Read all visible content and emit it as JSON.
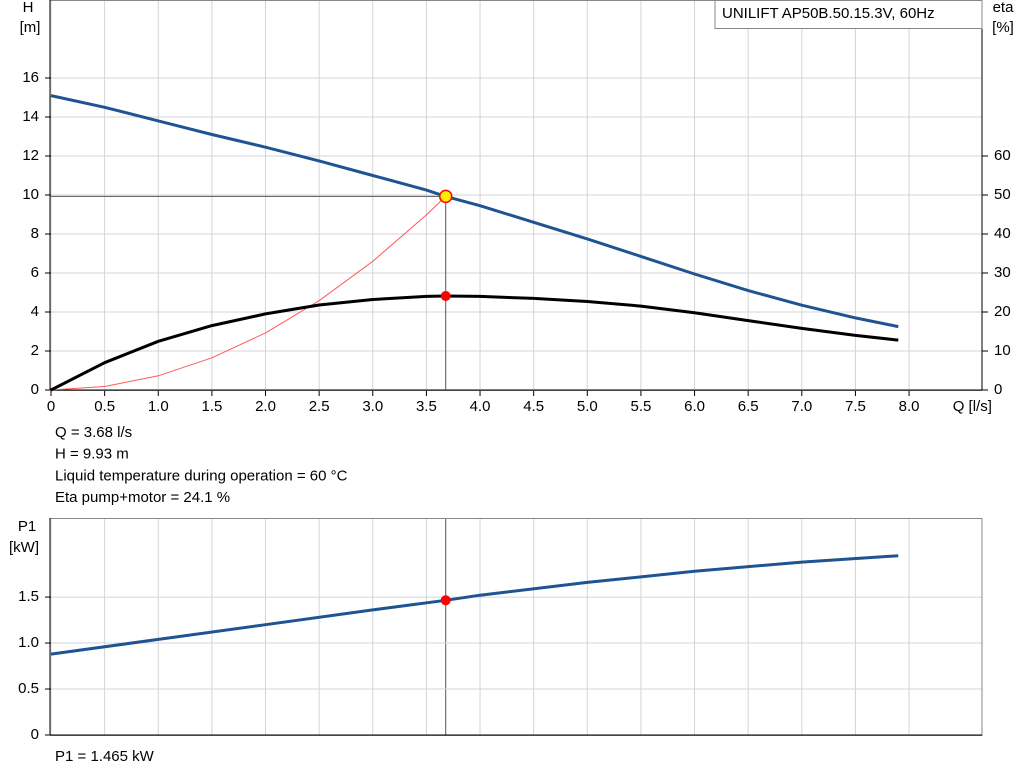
{
  "chart_data": [
    {
      "type": "line",
      "legend_title": "UNILIFT AP50B.50.15.3V, 60Hz",
      "y_label": "H",
      "y_unit": "[m]",
      "y2_label": "eta",
      "y2_unit": "[%]",
      "x_label": "Q [l/s]",
      "xlim": [
        0,
        8.68
      ],
      "xticks": [
        0,
        0.5,
        {
          "value": 1,
          "label": "1.0"
        },
        1.5,
        {
          "value": 2,
          "label": "2.0"
        },
        2.5,
        {
          "value": 3,
          "label": "3.0"
        },
        3.5,
        {
          "value": 4,
          "label": "4.0"
        },
        4.5,
        {
          "value": 5,
          "label": "5.0"
        },
        5.5,
        {
          "value": 6,
          "label": "6.0"
        },
        6.5,
        {
          "value": 7,
          "label": "7.0"
        },
        7.5,
        {
          "value": 8,
          "label": "8.0"
        }
      ],
      "ylim": [
        0,
        20
      ],
      "yticks": [
        0,
        2,
        4,
        6,
        8,
        10,
        12,
        14,
        16
      ],
      "y2lim": [
        0,
        100
      ],
      "y2ticks": [
        0,
        10,
        20,
        30,
        40,
        50,
        60
      ],
      "grid": true,
      "series": [
        {
          "color": "#ff5a5a",
          "width": 1,
          "x": [
            0,
            0.5,
            1,
            1.5,
            2,
            2.5,
            3,
            3.5,
            3.68
          ],
          "values": [
            0,
            0.18,
            0.73,
            1.65,
            2.93,
            4.58,
            6.6,
            8.98,
            9.93
          ]
        },
        {
          "color": "#1f5391",
          "width": 3,
          "x": [
            0,
            0.5,
            1,
            1.5,
            2,
            2.5,
            3,
            3.5,
            3.68,
            4,
            4.5,
            5,
            5.5,
            6,
            6.5,
            7,
            7.5,
            7.9
          ],
          "values": [
            15.1,
            14.5,
            13.8,
            13.1,
            12.45,
            11.75,
            11.0,
            10.25,
            9.93,
            9.45,
            8.6,
            7.75,
            6.85,
            5.95,
            5.1,
            4.35,
            3.7,
            3.25
          ]
        },
        {
          "color": "#000000",
          "width": 3,
          "axis": "y2",
          "x": [
            0,
            0.5,
            1,
            1.5,
            2,
            2.5,
            3,
            3.5,
            3.68,
            4,
            4.5,
            5,
            5.5,
            6,
            6.5,
            7,
            7.5,
            7.9
          ],
          "values": [
            0,
            7,
            12.5,
            16.5,
            19.5,
            21.8,
            23.2,
            24,
            24.1,
            24,
            23.5,
            22.7,
            21.5,
            19.8,
            17.8,
            15.8,
            14,
            12.8
          ]
        }
      ],
      "markers": [
        {
          "x": 3.68,
          "y": 24.1,
          "axis": "y2",
          "color": "#ff0000"
        },
        {
          "x": 3.68,
          "y": 9.93,
          "color": "#ffee00",
          "guides": true
        }
      ],
      "info": [
        "Q = 3.68 l/s",
        "H = 9.93 m",
        "Liquid temperature during operation = 60 °C",
        "Eta pump+motor = 24.1 %"
      ]
    },
    {
      "type": "line",
      "y_label": "P1",
      "y_unit": "[kW]",
      "xlim": [
        0,
        8.68
      ],
      "ylim": [
        0,
        2.36
      ],
      "yticks": [
        0,
        0.5,
        {
          "value": 1,
          "label": "1.0"
        },
        1.5
      ],
      "grid": true,
      "series": [
        {
          "color": "#1f5391",
          "width": 3,
          "x": [
            0,
            1,
            2,
            3,
            3.68,
            4,
            5,
            6,
            7,
            7.9
          ],
          "values": [
            0.88,
            1.04,
            1.2,
            1.36,
            1.465,
            1.52,
            1.66,
            1.78,
            1.88,
            1.95
          ]
        }
      ],
      "markers": [
        {
          "x": 3.68,
          "y": 1.465,
          "color": "#ff0000"
        }
      ],
      "info": [
        "P1 = 1.465 kW"
      ]
    }
  ]
}
